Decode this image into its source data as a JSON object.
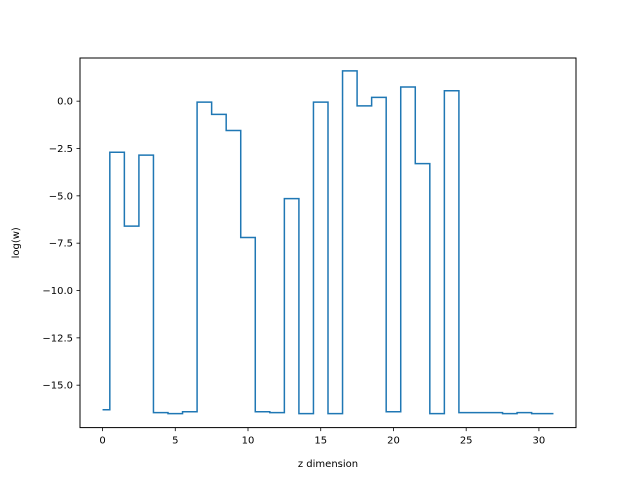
{
  "chart_data": {
    "type": "line",
    "drawstyle": "steps-mid",
    "title": "",
    "xlabel": "z dimension",
    "ylabel": "log(w)",
    "xlim": [
      -1.55,
      32.55
    ],
    "ylim": [
      -17.24,
      2.28
    ],
    "xticks": [
      0,
      5,
      10,
      15,
      20,
      25,
      30
    ],
    "xtick_labels": [
      "0",
      "5",
      "10",
      "15",
      "20",
      "25",
      "30"
    ],
    "yticks": [
      0.0,
      -2.5,
      -5.0,
      -7.5,
      -10.0,
      -12.5,
      -15.0
    ],
    "ytick_labels": [
      "0.0",
      "−2.5",
      "−5.0",
      "−7.5",
      "−10.0",
      "−12.5",
      "−15.0"
    ],
    "grid": false,
    "legend": "none",
    "series": [
      {
        "color": "#1f77b4",
        "x": [
          0,
          1,
          2,
          3,
          4,
          5,
          6,
          7,
          8,
          9,
          10,
          11,
          12,
          13,
          14,
          15,
          16,
          17,
          18,
          19,
          20,
          21,
          22,
          23,
          24,
          25,
          26,
          27,
          28,
          29,
          30,
          31
        ],
        "y": [
          -16.3,
          -2.7,
          -6.6,
          -2.85,
          -16.45,
          -16.5,
          -16.4,
          -0.05,
          -0.7,
          -1.55,
          -7.2,
          -16.4,
          -16.45,
          -5.15,
          -16.5,
          -0.05,
          -16.5,
          1.6,
          -0.25,
          0.2,
          -16.4,
          0.75,
          -3.3,
          -16.5,
          0.55,
          -16.45,
          -16.45,
          -16.45,
          -16.5,
          -16.45,
          -16.5,
          -16.5
        ]
      }
    ]
  }
}
